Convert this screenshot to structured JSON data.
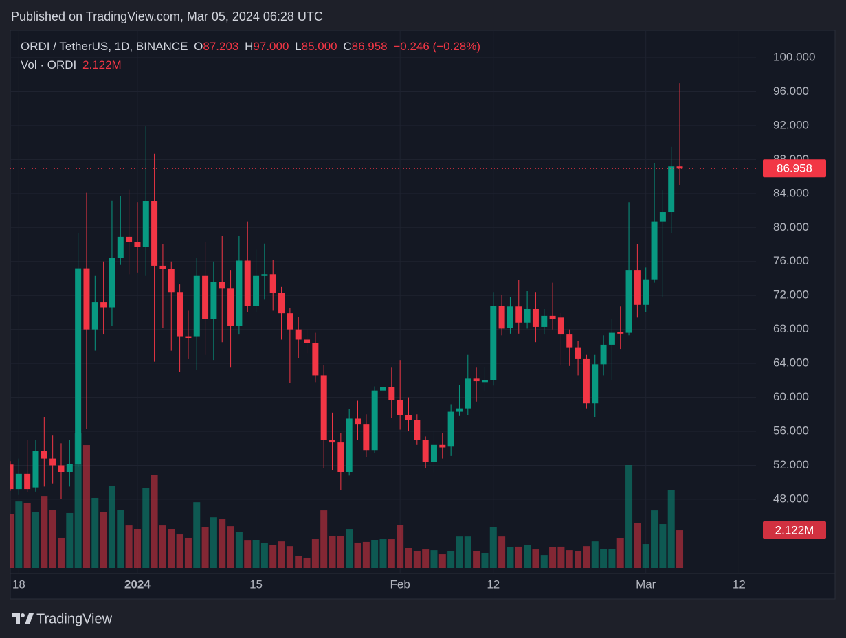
{
  "header": "Published on TradingView.com, Mar 05, 2024 06:28 UTC",
  "footer": "TradingView",
  "chart_data": {
    "type": "candlestick",
    "legend": {
      "symbol": "ORDI / TetherUS, 1D, BINANCE",
      "o": "O",
      "open": "87.203",
      "h": "H",
      "high": "97.000",
      "l": "L",
      "low": "85.000",
      "c": "C",
      "close": "86.958",
      "change": "−0.246 (−0.28%)",
      "volume_name": "Vol · ORDI"
    },
    "x": [
      "2023-12-17",
      "2023-12-18",
      "2023-12-19",
      "2023-12-20",
      "2023-12-21",
      "2023-12-22",
      "2023-12-23",
      "2023-12-24",
      "2023-12-25",
      "2023-12-26",
      "2023-12-27",
      "2023-12-28",
      "2023-12-29",
      "2023-12-30",
      "2023-12-31",
      "2024-01-01",
      "2024-01-02",
      "2024-01-03",
      "2024-01-04",
      "2024-01-05",
      "2024-01-06",
      "2024-01-07",
      "2024-01-08",
      "2024-01-09",
      "2024-01-10",
      "2024-01-11",
      "2024-01-12",
      "2024-01-13",
      "2024-01-14",
      "2024-01-15",
      "2024-01-16",
      "2024-01-17",
      "2024-01-18",
      "2024-01-19",
      "2024-01-20",
      "2024-01-21",
      "2024-01-22",
      "2024-01-23",
      "2024-01-24",
      "2024-01-25",
      "2024-01-26",
      "2024-01-27",
      "2024-01-28",
      "2024-01-29",
      "2024-01-30",
      "2024-01-31",
      "2024-02-01",
      "2024-02-02",
      "2024-02-03",
      "2024-02-04",
      "2024-02-05",
      "2024-02-06",
      "2024-02-07",
      "2024-02-08",
      "2024-02-09",
      "2024-02-10",
      "2024-02-11",
      "2024-02-12",
      "2024-02-13",
      "2024-02-14",
      "2024-02-15",
      "2024-02-16",
      "2024-02-17",
      "2024-02-18",
      "2024-02-19",
      "2024-02-20",
      "2024-02-21",
      "2024-02-22",
      "2024-02-23",
      "2024-02-24",
      "2024-02-25",
      "2024-02-26",
      "2024-02-27",
      "2024-02-28",
      "2024-02-29",
      "2024-03-01",
      "2024-03-02",
      "2024-03-03",
      "2024-03-04",
      "2024-03-05"
    ],
    "open": [
      52.1,
      49.2,
      51.0,
      49.4,
      53.7,
      52.8,
      52.0,
      51.2,
      52.2,
      75.2,
      68.0,
      71.2,
      70.6,
      76.4,
      78.9,
      78.3,
      77.7,
      83.1,
      75.5,
      75.1,
      72.4,
      67.2,
      67.2,
      74.3,
      69.2,
      73.6,
      72.8,
      68.4,
      76.1,
      70.8,
      74.3,
      74.5,
      72.3,
      69.9,
      68.0,
      66.8,
      66.4,
      62.6,
      55.0,
      54.7,
      51.2,
      57.5,
      56.8,
      53.8,
      60.8,
      61.2,
      59.7,
      57.9,
      57.3,
      55.0,
      52.4,
      54.4,
      54.2,
      58.3,
      58.7,
      62.2,
      61.8,
      62.0,
      70.8,
      68.2,
      70.7,
      68.8,
      70.4,
      68.3,
      69.6,
      69.4,
      67.4,
      65.9,
      64.5,
      59.3,
      63.9,
      66.2,
      67.7,
      67.6,
      75.0,
      70.9,
      73.9,
      80.7,
      81.8,
      87.203
    ],
    "high": [
      52.5,
      52.8,
      55.0,
      55.0,
      57.7,
      55.5,
      54.6,
      55.0,
      79.3,
      84.1,
      74.3,
      76.0,
      83.2,
      83.7,
      84.5,
      83.0,
      91.9,
      88.7,
      78.0,
      76.0,
      73.3,
      70.2,
      76.4,
      78.3,
      76.0,
      79.0,
      75.0,
      79.0,
      80.7,
      77.4,
      78.1,
      76.2,
      73.0,
      70.5,
      69.5,
      68.0,
      67.6,
      63.8,
      58.2,
      55.8,
      58.6,
      59.6,
      58.0,
      61.3,
      64.3,
      63.5,
      64.4,
      60.0,
      58.0,
      55.4,
      56.0,
      55.8,
      59.2,
      61.5,
      65.0,
      63.5,
      63.6,
      72.4,
      72.1,
      71.8,
      73.8,
      72.5,
      72.4,
      70.4,
      73.5,
      69.9,
      68.0,
      66.6,
      65.0,
      65.0,
      67.3,
      69.2,
      70.7,
      83.0,
      78.0,
      75.3,
      87.6,
      84.4,
      89.5,
      97
    ],
    "low": [
      49.0,
      48.5,
      48.8,
      48.9,
      49.5,
      49.8,
      48.0,
      49.5,
      51.8,
      56.3,
      65.5,
      67.4,
      68.4,
      75.6,
      74.5,
      74.7,
      74.3,
      64.2,
      68.2,
      65.5,
      63.0,
      64.5,
      63.2,
      65.0,
      64.4,
      66.5,
      63.5,
      67.4,
      70.0,
      70.0,
      71.5,
      70.2,
      66.8,
      61.7,
      64.6,
      65.2,
      61.8,
      51.7,
      51.4,
      49.1,
      50.8,
      55.0,
      53.0,
      53.5,
      58.5,
      57.6,
      56.2,
      56.0,
      54.4,
      51.7,
      51.1,
      52.8,
      53.1,
      57.8,
      57.9,
      59.5,
      60.8,
      61.4,
      67.3,
      67.5,
      67.5,
      68.1,
      66.5,
      67.4,
      68.0,
      63.8,
      63.7,
      62.6,
      58.7,
      57.7,
      62.6,
      62.0,
      65.7,
      67.3,
      69.4,
      70.0,
      73.5,
      71.8,
      79.3,
      85
    ],
    "close": [
      49.2,
      51.0,
      49.2,
      53.7,
      52.8,
      52.0,
      51.2,
      52.2,
      75.2,
      68.0,
      71.2,
      70.6,
      76.4,
      78.9,
      78.3,
      77.7,
      83.1,
      75.5,
      75.1,
      72.4,
      67.2,
      67.0,
      74.3,
      69.2,
      73.6,
      72.8,
      68.4,
      76.1,
      70.8,
      74.3,
      74.5,
      72.3,
      69.9,
      68.0,
      66.8,
      66.4,
      62.6,
      55.0,
      54.7,
      51.2,
      57.5,
      56.8,
      53.8,
      60.8,
      61.2,
      59.7,
      57.9,
      57.3,
      55.0,
      52.4,
      54.4,
      54.1,
      58.3,
      58.7,
      62.2,
      61.9,
      62.0,
      70.8,
      68.1,
      70.7,
      68.8,
      70.4,
      68.3,
      69.6,
      69.2,
      67.4,
      65.9,
      64.5,
      59.3,
      63.9,
      66.2,
      67.6,
      67.5,
      75.0,
      70.9,
      73.9,
      80.7,
      81.8,
      87.2,
      86.958
    ],
    "volume": [
      3.05,
      3.74,
      3.63,
      3.16,
      4.05,
      3.28,
      1.7,
      3.09,
      7.6,
      6.91,
      3.94,
      3.16,
      4.63,
      3.28,
      2.39,
      2.2,
      4.51,
      5.25,
      2.39,
      2.2,
      1.89,
      1.7,
      3.7,
      2.28,
      2.85,
      2.74,
      2.35,
      2.01,
      1.54,
      1.58,
      1.39,
      1.31,
      1.5,
      1.23,
      0.66,
      0.58,
      1.62,
      3.24,
      1.81,
      1.81,
      2.16,
      1.43,
      1.47,
      1.58,
      1.62,
      1.62,
      2.43,
      1.12,
      0.96,
      1.04,
      1.0,
      0.77,
      0.93,
      1.77,
      1.77,
      0.96,
      0.85,
      2.31,
      1.77,
      1.16,
      1.2,
      1.31,
      1.04,
      0.73,
      1.16,
      1.2,
      1.0,
      0.93,
      1.23,
      1.5,
      1.08,
      1.08,
      1.66,
      5.79,
      2.51,
      1.35,
      3.24,
      2.47,
      4.4,
      2.122
    ],
    "volume_label": "2.122M",
    "vlim": [
      0,
      10
    ],
    "xlim": [
      "2023-12-17",
      "2024-03-14"
    ],
    "xticks": [
      {
        "value": "2023-12-18",
        "label": "18"
      },
      {
        "value": "2024-01-01",
        "label": "2024"
      },
      {
        "value": "2024-01-15",
        "label": "15"
      },
      {
        "value": "2024-02-01",
        "label": "Feb"
      },
      {
        "value": "2024-02-12",
        "label": "12"
      },
      {
        "value": "2024-03-01",
        "label": "Mar"
      },
      {
        "value": "2024-03-12",
        "label": "12"
      }
    ],
    "ylim": [
      39.26,
      103.235
    ],
    "yticks": [
      {
        "value": 48,
        "label": "48.000"
      },
      {
        "value": 52,
        "label": "52.000"
      },
      {
        "value": 56,
        "label": "56.000"
      },
      {
        "value": 60,
        "label": "60.000"
      },
      {
        "value": 64,
        "label": "64.000"
      },
      {
        "value": 68,
        "label": "68.000"
      },
      {
        "value": 72,
        "label": "72.000"
      },
      {
        "value": 76,
        "label": "76.000"
      },
      {
        "value": 80,
        "label": "80.000"
      },
      {
        "value": 84,
        "label": "84.000"
      },
      {
        "value": 88,
        "label": "88.000"
      },
      {
        "value": 92,
        "label": "92.000"
      },
      {
        "value": 96,
        "label": "96.000"
      },
      {
        "value": 100,
        "label": "100.000"
      }
    ],
    "grid": true,
    "up_color": "#089981",
    "down_color": "#f23645"
  }
}
